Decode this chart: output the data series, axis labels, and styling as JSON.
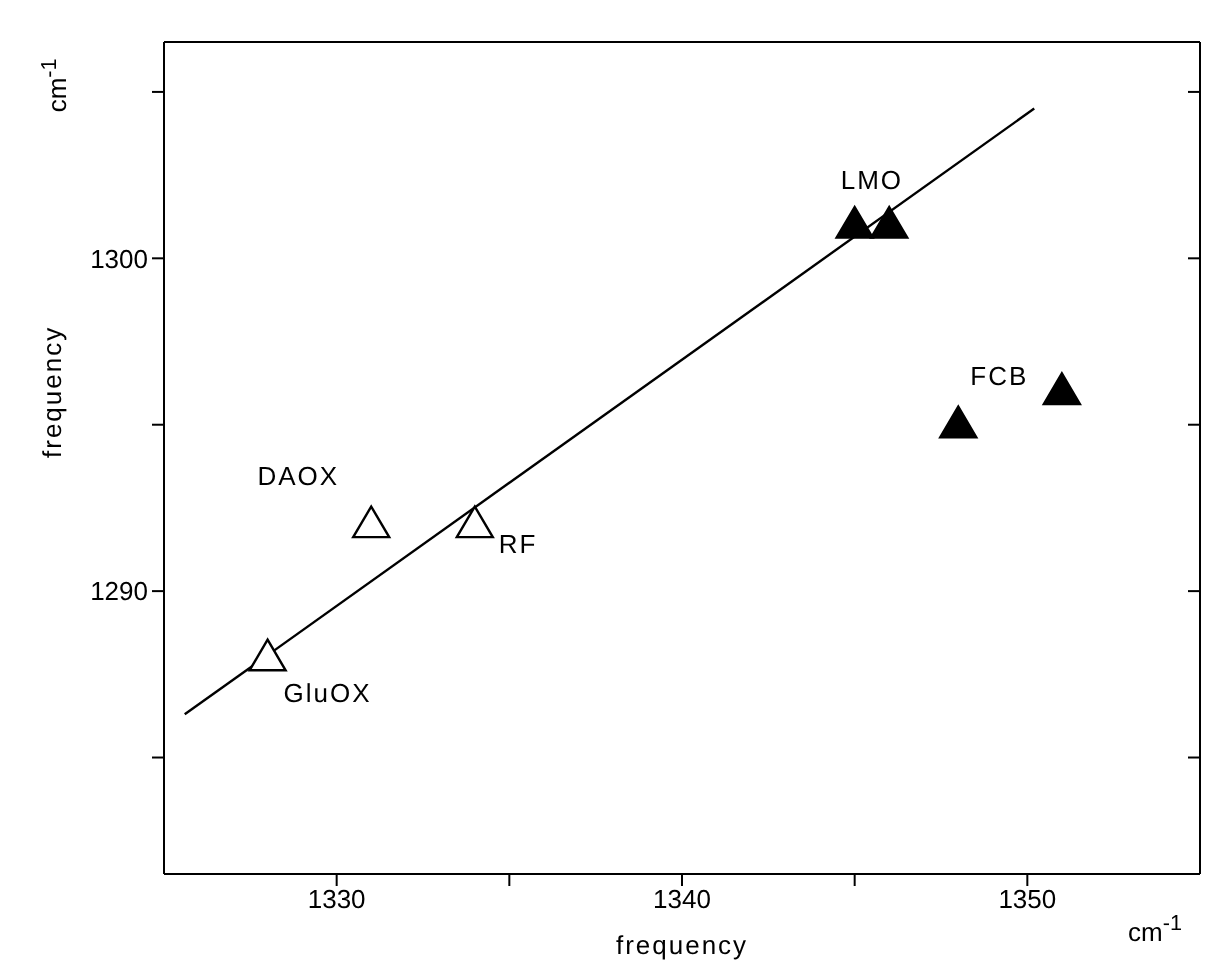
{
  "chart_data": {
    "type": "scatter",
    "xlabel": "frequency",
    "ylabel": "frequency",
    "marker": "triangle",
    "xlim": [
      1325,
      1355
    ],
    "xticks": [
      1330,
      {
        "value": 1335,
        "label": null
      },
      1340,
      {
        "value": 1345,
        "label": null
      },
      1350
    ],
    "ylim": [
      1281.5,
      1306.5
    ],
    "yticks": [
      {
        "value": 1285,
        "label": null
      },
      1290,
      {
        "value": 1295,
        "label": null
      },
      1300,
      {
        "value": 1305,
        "label": null
      }
    ],
    "series": [
      {
        "color": "#ffffff",
        "x": [
          1328,
          1331,
          1334
        ],
        "values": [
          1288,
          1292,
          1292
        ]
      },
      {
        "color": "#000000",
        "x": [
          1345,
          1346,
          1348,
          1351
        ],
        "values": [
          1301,
          1301,
          1295,
          1296
        ]
      },
      {
        "type": "line",
        "marker": "none",
        "color": "#000000",
        "x": [
          1325.6,
          1350.2
        ],
        "values": [
          1286.3,
          1304.5
        ]
      }
    ],
    "annotations": [
      {
        "text": "GluOX",
        "x": 1328,
        "y": 1288
      },
      {
        "text": "DAOX",
        "x": 1331,
        "y": 1292
      },
      {
        "text": "RF",
        "x": 1334,
        "y": 1292
      },
      {
        "text": "LMO",
        "x": 1345.5,
        "y": 1301
      },
      {
        "text": "FCB",
        "x": 1348,
        "y": 1295
      },
      "cm$^{-1}$",
      "cm$^{-1}$"
    ]
  }
}
